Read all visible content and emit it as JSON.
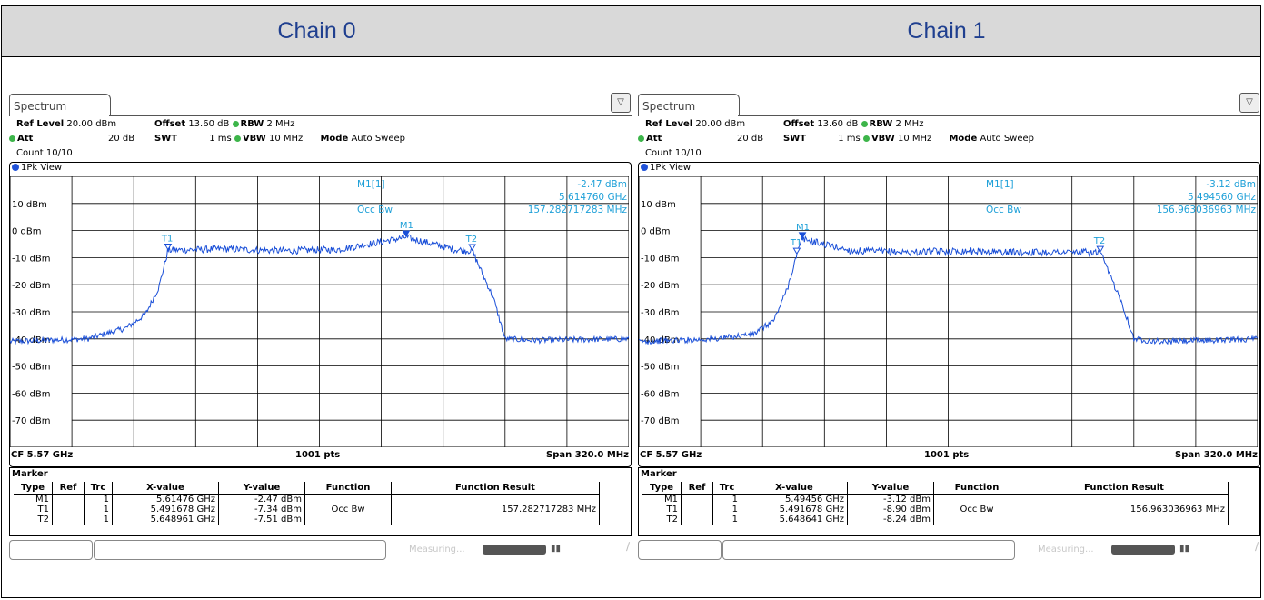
{
  "colors": {
    "header_bg": "#d9d9d9",
    "header_text": "#1f3f8f",
    "trace": "#1a4fd8",
    "marker_text": "#1ea0d8",
    "status_green": "#3db54a"
  },
  "panels": [
    {
      "chain_title": "Chain 0",
      "tab_label": "Spectrum",
      "menu_icon": "menu-expand-icon",
      "settings": {
        "ref_level_label": "Ref Level",
        "ref_level_value": "20.00 dBm",
        "offset_label": "Offset",
        "offset_value": "13.60 dB",
        "rbw_label": "RBW",
        "rbw_value": "2 MHz",
        "att_label": "Att",
        "att_value": "20 dB",
        "swt_label": "SWT",
        "swt_value": "1 ms",
        "vbw_label": "VBW",
        "vbw_value": "10 MHz",
        "mode_label": "Mode",
        "mode_value": "Auto Sweep",
        "count": "Count 10/10"
      },
      "view_label": "1Pk View",
      "y_axis_labels": [
        "10 dBm",
        "0 dBm",
        "-10 dBm",
        "-20 dBm",
        "-30 dBm",
        "-40 dBm",
        "-50 dBm",
        "-60 dBm",
        "-70 dBm"
      ],
      "marker_readout": {
        "name": "M1[1]",
        "level": "-2.47 dBm",
        "freq": "5.614760 GHz",
        "func": "Occ Bw",
        "func_result": "157.282717283 MHz"
      },
      "trace_markers": [
        "T1",
        "M1",
        "T2"
      ],
      "footer": {
        "cf": "CF 5.57 GHz",
        "pts": "1001 pts",
        "span": "Span 320.0 MHz"
      },
      "marker_table": {
        "title": "Marker",
        "headers": [
          "Type",
          "Ref",
          "Trc",
          "X-value",
          "Y-value",
          "Function",
          "Function Result"
        ],
        "rows": [
          [
            "M1",
            "",
            "1",
            "5.61476 GHz",
            "-2.47 dBm",
            "",
            ""
          ],
          [
            "T1",
            "",
            "1",
            "5.491678 GHz",
            "-7.34 dBm",
            "Occ Bw",
            "157.282717283 MHz"
          ],
          [
            "T2",
            "",
            "1",
            "5.648961 GHz",
            "-7.51 dBm",
            "",
            ""
          ]
        ]
      },
      "status_text": "Measuring...",
      "chart_data": {
        "type": "line",
        "xlabel": "",
        "ylabel": "",
        "x_range_ghz": [
          5.41,
          5.73
        ],
        "ylim": [
          -80,
          20
        ],
        "y_ticks": [
          10,
          0,
          -10,
          -20,
          -30,
          -40,
          -50,
          -60,
          -70
        ],
        "grid": true,
        "series": [
          {
            "x": [
              5.41,
              5.45,
              5.47,
              5.48,
              5.487,
              5.4917,
              5.52,
              5.55,
              5.58,
              5.6148,
              5.64,
              5.649,
              5.66,
              5.666,
              5.68,
              5.73
            ],
            "y": [
              -41,
              -40,
              -36,
              -31,
              -21,
              -7.3,
              -6.8,
              -7.5,
              -7.0,
              -2.47,
              -7.0,
              -7.5,
              -25,
              -40,
              -40.5,
              -40
            ]
          }
        ],
        "markers": [
          {
            "name": "T1",
            "x": 5.4917,
            "y": -7.34
          },
          {
            "name": "M1",
            "x": 5.6148,
            "y": -2.47
          },
          {
            "name": "T2",
            "x": 5.649,
            "y": -7.51
          }
        ]
      }
    },
    {
      "chain_title": "Chain 1",
      "tab_label": "Spectrum",
      "menu_icon": "menu-expand-icon",
      "settings": {
        "ref_level_label": "Ref Level",
        "ref_level_value": "20.00 dBm",
        "offset_label": "Offset",
        "offset_value": "13.60 dB",
        "rbw_label": "RBW",
        "rbw_value": "2 MHz",
        "att_label": "Att",
        "att_value": "20 dB",
        "swt_label": "SWT",
        "swt_value": "1 ms",
        "vbw_label": "VBW",
        "vbw_value": "10 MHz",
        "mode_label": "Mode",
        "mode_value": "Auto Sweep",
        "count": "Count 10/10"
      },
      "view_label": "1Pk View",
      "y_axis_labels": [
        "10 dBm",
        "0 dBm",
        "-10 dBm",
        "-20 dBm",
        "-30 dBm",
        "-40 dBm",
        "-50 dBm",
        "-60 dBm",
        "-70 dBm"
      ],
      "marker_readout": {
        "name": "M1[1]",
        "level": "-3.12 dBm",
        "freq": "5.494560 GHz",
        "func": "Occ Bw",
        "func_result": "156.963036963 MHz"
      },
      "trace_markers": [
        "T1",
        "M1",
        "T2"
      ],
      "footer": {
        "cf": "CF 5.57 GHz",
        "pts": "1001 pts",
        "span": "Span 320.0 MHz"
      },
      "marker_table": {
        "title": "Marker",
        "headers": [
          "Type",
          "Ref",
          "Trc",
          "X-value",
          "Y-value",
          "Function",
          "Function Result"
        ],
        "rows": [
          [
            "M1",
            "",
            "1",
            "5.49456 GHz",
            "-3.12 dBm",
            "",
            ""
          ],
          [
            "T1",
            "",
            "1",
            "5.491678 GHz",
            "-8.90 dBm",
            "Occ Bw",
            "156.963036963 MHz"
          ],
          [
            "T2",
            "",
            "1",
            "5.648641 GHz",
            "-8.24 dBm",
            "",
            ""
          ]
        ]
      },
      "status_text": "Measuring...",
      "chart_data": {
        "type": "line",
        "xlabel": "",
        "ylabel": "",
        "x_range_ghz": [
          5.41,
          5.73
        ],
        "ylim": [
          -80,
          20
        ],
        "y_ticks": [
          10,
          0,
          -10,
          -20,
          -30,
          -40,
          -50,
          -60,
          -70
        ],
        "grid": true,
        "series": [
          {
            "x": [
              5.41,
              5.45,
              5.47,
              5.48,
              5.487,
              5.4917,
              5.4946,
              5.52,
              5.55,
              5.58,
              5.6,
              5.64,
              5.6486,
              5.66,
              5.666,
              5.68,
              5.73
            ],
            "y": [
              -41,
              -40,
              -38,
              -33,
              -21,
              -8.9,
              -3.12,
              -7.5,
              -8.0,
              -7.5,
              -8.0,
              -8.0,
              -8.24,
              -27,
              -40,
              -41,
              -40
            ]
          }
        ],
        "markers": [
          {
            "name": "T1",
            "x": 5.4917,
            "y": -8.9
          },
          {
            "name": "M1",
            "x": 5.4946,
            "y": -3.12
          },
          {
            "name": "T2",
            "x": 5.6486,
            "y": -8.24
          }
        ]
      }
    }
  ]
}
